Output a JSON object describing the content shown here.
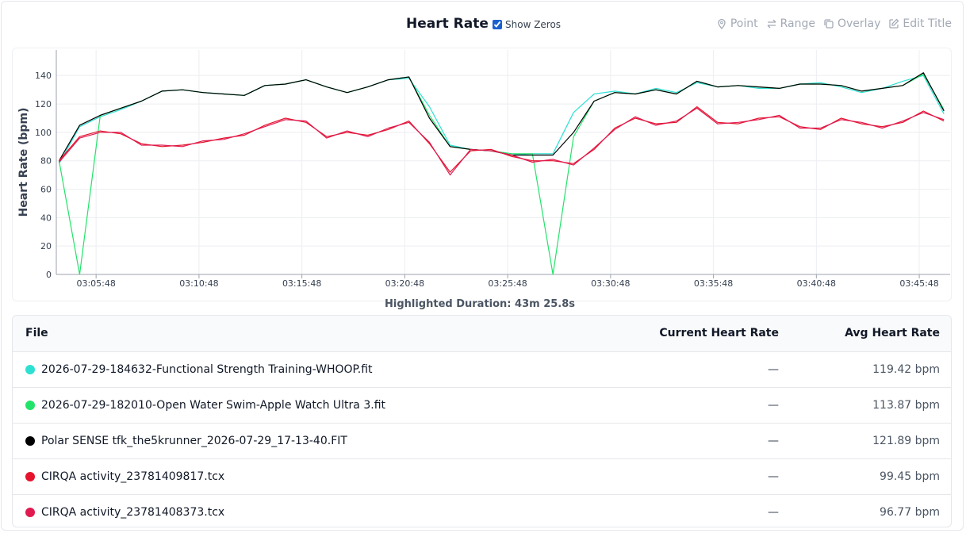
{
  "header": {
    "title": "Heart Rate",
    "show_zeros": "Show Zeros",
    "show_zeros_checked": true,
    "buttons": [
      "Point",
      "Range",
      "Overlay",
      "Edit Title"
    ]
  },
  "chart_data": {
    "type": "line",
    "y_label": "Heart Rate (bpm)",
    "x": [
      "03:04:00",
      "03:05:00",
      "03:06:00",
      "03:07:00",
      "03:08:00",
      "03:09:00",
      "03:10:00",
      "03:11:00",
      "03:12:00",
      "03:13:00",
      "03:14:00",
      "03:15:00",
      "03:16:00",
      "03:17:00",
      "03:18:00",
      "03:19:00",
      "03:20:00",
      "03:21:00",
      "03:22:00",
      "03:23:00",
      "03:24:00",
      "03:25:00",
      "03:26:00",
      "03:27:00",
      "03:28:00",
      "03:29:00",
      "03:30:00",
      "03:31:00",
      "03:32:00",
      "03:33:00",
      "03:34:00",
      "03:35:00",
      "03:36:00",
      "03:37:00",
      "03:38:00",
      "03:39:00",
      "03:40:00",
      "03:41:00",
      "03:42:00",
      "03:43:00",
      "03:44:00",
      "03:45:00",
      "03:46:00",
      "03:47:00"
    ],
    "xlim": [
      "03:03:52",
      "03:47:18"
    ],
    "xticks": [
      "03:05:48",
      "03:10:48",
      "03:15:48",
      "03:20:48",
      "03:25:48",
      "03:30:48",
      "03:35:48",
      "03:40:48",
      "03:45:48"
    ],
    "ylim": [
      0,
      158
    ],
    "yticks": [
      0,
      20,
      40,
      60,
      80,
      100,
      120,
      140
    ],
    "grid": true,
    "series": [
      {
        "name": "2026-07-29-184632-Functional Strength Training-WHOOP.fit",
        "color": "#2ee0d2",
        "values": [
          78,
          104,
          111,
          116,
          122,
          129,
          130,
          128,
          127,
          126,
          133,
          134,
          137,
          132,
          128,
          132,
          137,
          138,
          118,
          91,
          88,
          87,
          84,
          85,
          85,
          114,
          127,
          129,
          127,
          131,
          128,
          135,
          132,
          133,
          131,
          131,
          134,
          135,
          132,
          128,
          131,
          136,
          140,
          113
        ]
      },
      {
        "name": "2026-07-29-182010-Open Water Swim-Apple Watch Ultra 3.fit",
        "color": "#22e36a",
        "values": [
          80,
          0,
          112,
          117,
          122,
          129,
          130,
          128,
          127,
          126,
          133,
          134,
          137,
          132,
          128,
          132,
          137,
          139,
          112,
          90,
          88,
          87,
          85,
          85,
          0,
          97,
          122,
          128,
          127,
          130,
          127,
          136,
          132,
          133,
          132,
          131,
          134,
          134,
          133,
          129,
          131,
          133,
          141,
          116
        ]
      },
      {
        "name": "Polar SENSE tfk_the5krunner_2026-07-29_17-13-40.FIT",
        "color": "#000000",
        "values": [
          80,
          105,
          112,
          117,
          122,
          129,
          130,
          128,
          127,
          126,
          133,
          134,
          137,
          132,
          128,
          132,
          137,
          139,
          110,
          90,
          88,
          87,
          84,
          84,
          84,
          100,
          122,
          128,
          127,
          130,
          127,
          136,
          132,
          133,
          132,
          131,
          134,
          134,
          133,
          129,
          131,
          133,
          142,
          115
        ]
      },
      {
        "name": "CIRQA activity_23781409817.tcx",
        "color": "#e5142c",
        "values": [
          80,
          97,
          101,
          99,
          92,
          90,
          91,
          93,
          96,
          98,
          105,
          110,
          107,
          97,
          100,
          98,
          102,
          108,
          92,
          72,
          87,
          88,
          83,
          80,
          80,
          78,
          88,
          103,
          110,
          106,
          107,
          118,
          107,
          106,
          110,
          111,
          104,
          102,
          110,
          106,
          104,
          107,
          115,
          108
        ]
      },
      {
        "name": "CIRQA activity_23781408373.tcx",
        "color": "#e01a4f",
        "values": [
          79,
          96,
          100,
          100,
          91,
          91,
          90,
          94,
          95,
          99,
          104,
          109,
          108,
          96,
          101,
          97,
          103,
          107,
          93,
          70,
          88,
          87,
          84,
          79,
          81,
          77,
          89,
          102,
          111,
          105,
          108,
          117,
          106,
          107,
          109,
          112,
          103,
          103,
          109,
          107,
          103,
          108,
          114,
          109
        ]
      }
    ]
  },
  "summary": "Highlighted Duration: 43m 25.8s",
  "table": {
    "columns": [
      "File",
      "Current Heart Rate",
      "Avg Heart Rate"
    ],
    "rows": [
      [
        "—",
        "119.42 bpm"
      ],
      [
        "—",
        "113.87 bpm"
      ],
      [
        "—",
        "121.89 bpm"
      ],
      [
        "—",
        "99.45 bpm"
      ],
      [
        "—",
        "96.77 bpm"
      ]
    ]
  }
}
